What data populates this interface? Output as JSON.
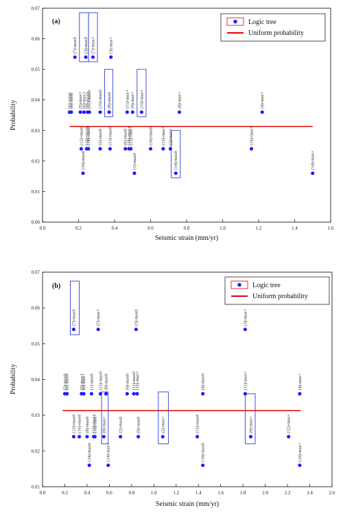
{
  "chart_data": [
    {
      "type": "scatter",
      "panel_label": "(a)",
      "xlabel": "Seismic strain (mm/yr)",
      "ylabel": "Probability",
      "xlim": [
        0.0,
        1.6
      ],
      "ylim": [
        0.0,
        0.07
      ],
      "x_ticks": [
        "0.0",
        "0.2",
        "0.4",
        "0.6",
        "0.8",
        "1.0",
        "1.2",
        "1.4",
        "1.6"
      ],
      "y_ticks": [
        "0.00",
        "0.01",
        "0.02",
        "0.03",
        "0.04",
        "0.05",
        "0.06",
        "0.07"
      ],
      "grid": false,
      "legend": {
        "position": "top-right",
        "entries": [
          {
            "label": "Logic tree",
            "marker": "dot"
          },
          {
            "label": "Uniform probability",
            "marker": "line"
          }
        ]
      },
      "uniform_probability": 0.0313,
      "series": [
        {
          "name": "Logic tree",
          "points": [
            {
              "x": 0.15,
              "y": 0.036,
              "label": "(5)-min0"
            },
            {
              "x": 0.16,
              "y": 0.036,
              "label": "(6)-min0"
            },
            {
              "x": 0.18,
              "y": 0.054,
              "label": "(7)-max0"
            },
            {
              "x": 0.21,
              "y": 0.036,
              "label": "(5)-max+"
            },
            {
              "x": 0.215,
              "y": 0.024,
              "label": "(12)-max0"
            },
            {
              "x": 0.225,
              "y": 0.016,
              "label": "(10)-max0"
            },
            {
              "x": 0.23,
              "y": 0.036,
              "label": "(6)-max+"
            },
            {
              "x": 0.24,
              "y": 0.054,
              "label": "(3)-max0"
            },
            {
              "x": 0.245,
              "y": 0.024,
              "label": "(16)-max0"
            },
            {
              "x": 0.25,
              "y": 0.036,
              "label": "(9)-max0"
            },
            {
              "x": 0.255,
              "y": 0.024,
              "label": "(14)-max0"
            },
            {
              "x": 0.26,
              "y": 0.036,
              "label": "(11)-max0"
            },
            {
              "x": 0.28,
              "y": 0.054,
              "label": "(7)-max+"
            },
            {
              "x": 0.32,
              "y": 0.024,
              "label": "(2)-max0"
            },
            {
              "x": 0.32,
              "y": 0.036,
              "label": "(15)-max0"
            },
            {
              "x": 0.37,
              "y": 0.036,
              "label": "(8)-max0"
            },
            {
              "x": 0.375,
              "y": 0.024,
              "label": "(13)-max0"
            },
            {
              "x": 0.38,
              "y": 0.054,
              "label": "(3)-max+"
            },
            {
              "x": 0.46,
              "y": 0.024,
              "label": "(6)-max0"
            },
            {
              "x": 0.47,
              "y": 0.036,
              "label": "(11)-max+"
            },
            {
              "x": 0.48,
              "y": 0.024,
              "label": "(10)-max+"
            },
            {
              "x": 0.49,
              "y": 0.024,
              "label": "(12)-max+"
            },
            {
              "x": 0.5,
              "y": 0.036,
              "label": "(9)-max+"
            },
            {
              "x": 0.51,
              "y": 0.016,
              "label": "(1)-max0"
            },
            {
              "x": 0.55,
              "y": 0.036,
              "label": "(15)-max+"
            },
            {
              "x": 0.6,
              "y": 0.024,
              "label": "(16)-max0"
            },
            {
              "x": 0.67,
              "y": 0.024,
              "label": "(13)-max+"
            },
            {
              "x": 0.71,
              "y": 0.024,
              "label": "(2)-max+"
            },
            {
              "x": 0.74,
              "y": 0.016,
              "label": "(14)-max0"
            },
            {
              "x": 0.76,
              "y": 0.036,
              "label": "(8)-max+"
            },
            {
              "x": 1.16,
              "y": 0.024,
              "label": "(16)-max+"
            },
            {
              "x": 1.22,
              "y": 0.036,
              "label": "(4)-max+"
            },
            {
              "x": 1.5,
              "y": 0.016,
              "label": "(14)-max+"
            }
          ]
        }
      ],
      "highlight_boxes": [
        {
          "x_range": [
            0.205,
            0.255
          ],
          "y_range": [
            0.0525,
            0.0685
          ]
        },
        {
          "x_range": [
            0.255,
            0.305
          ],
          "y_range": [
            0.0525,
            0.0685
          ]
        },
        {
          "x_range": [
            0.345,
            0.39
          ],
          "y_range": [
            0.0345,
            0.05
          ]
        },
        {
          "x_range": [
            0.525,
            0.575
          ],
          "y_range": [
            0.0345,
            0.05
          ]
        },
        {
          "x_range": [
            0.715,
            0.765
          ],
          "y_range": [
            0.0145,
            0.03
          ]
        }
      ]
    },
    {
      "type": "scatter",
      "panel_label": "(b)",
      "xlabel": "Seismic strain (mm/yr)",
      "ylabel": "Probability",
      "xlim": [
        0.0,
        2.6
      ],
      "ylim": [
        0.01,
        0.07
      ],
      "x_ticks": [
        "0.0",
        "0.2",
        "0.4",
        "0.6",
        "0.8",
        "1.0",
        "1.2",
        "1.4",
        "1.6",
        "1.8",
        "2.0",
        "2.2",
        "2.4",
        "2.6"
      ],
      "y_ticks": [
        "0.01",
        "0.02",
        "0.03",
        "0.04",
        "0.05",
        "0.06",
        "0.07"
      ],
      "grid": false,
      "legend": {
        "position": "top-right",
        "entries": [
          {
            "label": "Logic tree",
            "marker": "dot"
          },
          {
            "label": "Uniform probability",
            "marker": "line"
          }
        ]
      },
      "uniform_probability": 0.0313,
      "series": [
        {
          "name": "Logic tree",
          "points": [
            {
              "x": 0.2,
              "y": 0.036,
              "label": "(5)-max0"
            },
            {
              "x": 0.22,
              "y": 0.036,
              "label": "(6)-max0"
            },
            {
              "x": 0.28,
              "y": 0.054,
              "label": "(7)-max0"
            },
            {
              "x": 0.28,
              "y": 0.024,
              "label": "(13)-max0"
            },
            {
              "x": 0.33,
              "y": 0.024,
              "label": "(16)-max0"
            },
            {
              "x": 0.35,
              "y": 0.036,
              "label": "(5)-max+"
            },
            {
              "x": 0.37,
              "y": 0.036,
              "label": "(6)-max+"
            },
            {
              "x": 0.4,
              "y": 0.024,
              "label": "(8)-max0"
            },
            {
              "x": 0.42,
              "y": 0.016,
              "label": "(14)-max0"
            },
            {
              "x": 0.44,
              "y": 0.036,
              "label": "(1)-max0"
            },
            {
              "x": 0.46,
              "y": 0.024,
              "label": "(13)-max+"
            },
            {
              "x": 0.47,
              "y": 0.024,
              "label": "(16)-max+"
            },
            {
              "x": 0.5,
              "y": 0.054,
              "label": "(7)-max+"
            },
            {
              "x": 0.52,
              "y": 0.036,
              "label": "(15)-max0"
            },
            {
              "x": 0.55,
              "y": 0.024,
              "label": "(8)-max+"
            },
            {
              "x": 0.57,
              "y": 0.036,
              "label": "(8)-max0"
            },
            {
              "x": 0.59,
              "y": 0.016,
              "label": "(14)-max+"
            },
            {
              "x": 0.7,
              "y": 0.024,
              "label": "(2)-max0"
            },
            {
              "x": 0.76,
              "y": 0.036,
              "label": "(9)-max0"
            },
            {
              "x": 0.82,
              "y": 0.036,
              "label": "(11)-max0"
            },
            {
              "x": 0.84,
              "y": 0.054,
              "label": "(3)-max0"
            },
            {
              "x": 0.85,
              "y": 0.036,
              "label": "(15)-max+"
            },
            {
              "x": 0.86,
              "y": 0.024,
              "label": "(9)-max0"
            },
            {
              "x": 1.08,
              "y": 0.024,
              "label": "(2)-max+"
            },
            {
              "x": 1.39,
              "y": 0.024,
              "label": "(12)-max0"
            },
            {
              "x": 1.44,
              "y": 0.036,
              "label": "(4)-max0"
            },
            {
              "x": 1.44,
              "y": 0.016,
              "label": "(10)-max0"
            },
            {
              "x": 1.82,
              "y": 0.054,
              "label": "(3)-max+"
            },
            {
              "x": 1.82,
              "y": 0.036,
              "label": "(11)-max+"
            },
            {
              "x": 1.87,
              "y": 0.024,
              "label": "(9)-max+"
            },
            {
              "x": 2.21,
              "y": 0.024,
              "label": "(12)-max+"
            },
            {
              "x": 2.31,
              "y": 0.036,
              "label": "(4)-max+"
            },
            {
              "x": 2.31,
              "y": 0.016,
              "label": "(10)-max+"
            }
          ]
        }
      ],
      "highlight_boxes": [
        {
          "x_range": [
            0.25,
            0.33
          ],
          "y_range": [
            0.0525,
            0.0675
          ]
        },
        {
          "x_range": [
            0.53,
            0.59
          ],
          "y_range": [
            0.022,
            0.0365
          ]
        },
        {
          "x_range": [
            1.04,
            1.13
          ],
          "y_range": [
            0.022,
            0.0365
          ]
        },
        {
          "x_range": [
            1.82,
            1.91
          ],
          "y_range": [
            0.022,
            0.036
          ]
        }
      ]
    }
  ]
}
